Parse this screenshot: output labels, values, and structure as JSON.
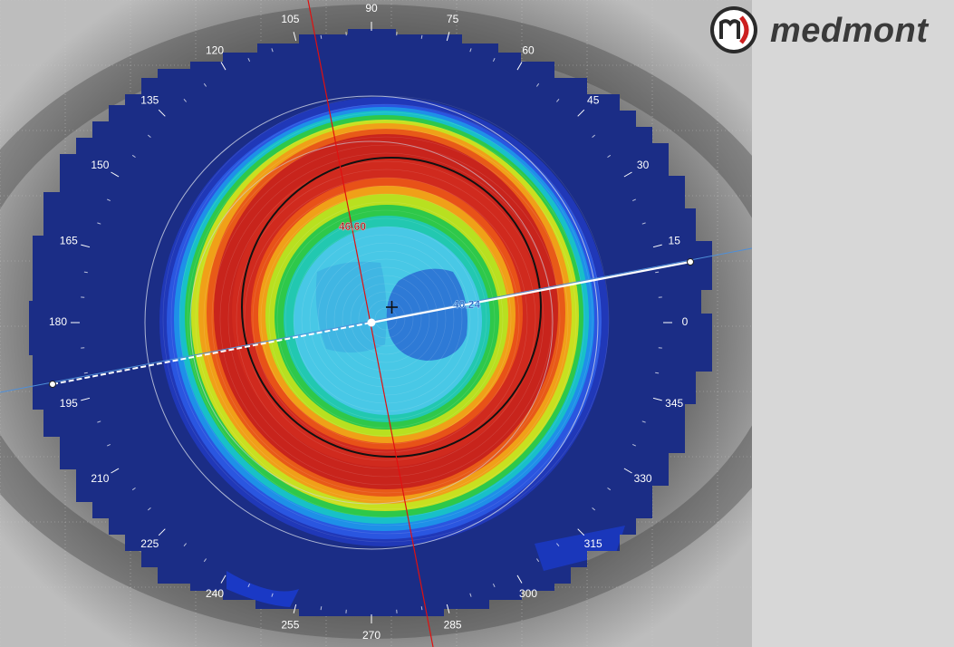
{
  "brand": {
    "name": "medmont",
    "mark": "m)",
    "mark_color": "#cc1f1f"
  },
  "colors": {
    "background_eye": "#7d7d7d",
    "map_outer": "#1b2d86",
    "ring_red": "#c8241c",
    "center_cyan": "#48c8e6",
    "center_blue": "#2e7ad6",
    "meridian_line": "#e01010",
    "profile_line": "#ffffff",
    "reticle_circle": "#111111"
  },
  "angle_labels": [
    "0",
    "15",
    "30",
    "45",
    "60",
    "75",
    "90",
    "105",
    "120",
    "135",
    "150",
    "165",
    "180",
    "195",
    "210",
    "225",
    "240",
    "255",
    "270",
    "285",
    "300",
    "315",
    "330",
    "345"
  ],
  "value_labels": {
    "upper": "46.60",
    "right": "40.24"
  },
  "legend": {
    "center_marker": "center-cross",
    "apex_marker": "apex-cross"
  }
}
